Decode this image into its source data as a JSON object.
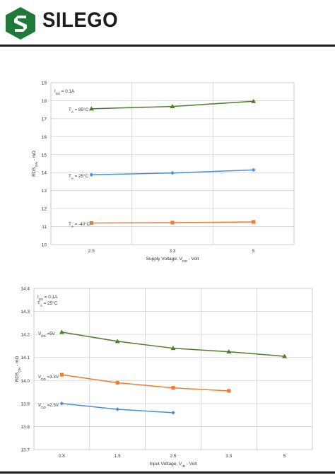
{
  "brand": {
    "name": "SILEGO",
    "colors": {
      "logo": "#1f7a3a",
      "text": "#1c1c1c"
    }
  },
  "chart_data": [
    {
      "type": "line",
      "xlabel": "Supply Voltage, V<sub>DD</sub> - Volt",
      "xlabel_parts": [
        "Supply Voltage, V",
        "DD",
        " - Volt"
      ],
      "ylabel_parts": [
        "RDS",
        "ON",
        " - mΩ"
      ],
      "categories": [
        "2.5",
        "3.3",
        "5"
      ],
      "ylim": [
        10,
        19
      ],
      "yticks": [
        "10",
        "11",
        "12",
        "13",
        "14",
        "15",
        "16",
        "17",
        "18",
        "19"
      ],
      "grid": true,
      "annotation": {
        "main": "I",
        "sub": "DS",
        "rest": " = 0.1A"
      },
      "series": [
        {
          "name": "T_A = 85°C",
          "label_main": "T",
          "label_sub": "A",
          "label_rest": " = 85°C",
          "color": "#4a7d2a",
          "marker": "triangle",
          "values": [
            17.55,
            17.68,
            17.97
          ]
        },
        {
          "name": "T_A = 25°C",
          "label_main": "T",
          "label_sub": "A",
          "label_rest": " = 25°C",
          "color": "#4a8fcf",
          "marker": "diamond",
          "values": [
            13.88,
            13.98,
            14.15
          ]
        },
        {
          "name": "T_A = -40°C",
          "label_main": "T",
          "label_sub": "A",
          "label_rest": " = -40°C",
          "color": "#ed7d31",
          "marker": "square",
          "values": [
            11.2,
            11.22,
            11.26
          ]
        }
      ]
    },
    {
      "type": "line",
      "xlabel_parts": [
        "Input Voltage, V",
        "IN",
        " - Volt"
      ],
      "ylabel_parts": [
        "RDS",
        "ON",
        " - mΩ"
      ],
      "categories": [
        "0.8",
        "1.5",
        "2.5",
        "3.3",
        "5"
      ],
      "ylim": [
        13.7,
        14.4
      ],
      "yticks": [
        "13.7",
        "13.8",
        "13.9",
        "14.0",
        "14.1",
        "14.2",
        "14.3",
        "14.4"
      ],
      "grid": true,
      "annotation": {
        "main": "I",
        "sub": "DS",
        "rest": " = 0.1A"
      },
      "annotation2": {
        "main": "T",
        "sub": "A",
        "rest": " = 25°C"
      },
      "series": [
        {
          "name": "V_DD = 5V",
          "label_main": "V",
          "label_sub": "DD",
          "label_rest": " =5V",
          "color": "#4a7d2a",
          "marker": "triangle",
          "values": [
            14.21,
            14.17,
            14.14,
            14.125,
            14.105
          ]
        },
        {
          "name": "V_DD = 3.3V",
          "label_main": "V",
          "label_sub": "DD",
          "label_rest": " =3.3V",
          "color": "#ed7d31",
          "marker": "square",
          "values": [
            14.025,
            13.99,
            13.968,
            13.955,
            null
          ]
        },
        {
          "name": "V_DD = 2.5V",
          "label_main": "V",
          "label_sub": "DD",
          "label_rest": " =2.5V",
          "color": "#4a8fcf",
          "marker": "diamond",
          "values": [
            13.9,
            13.875,
            13.86,
            null,
            null
          ]
        }
      ]
    }
  ]
}
